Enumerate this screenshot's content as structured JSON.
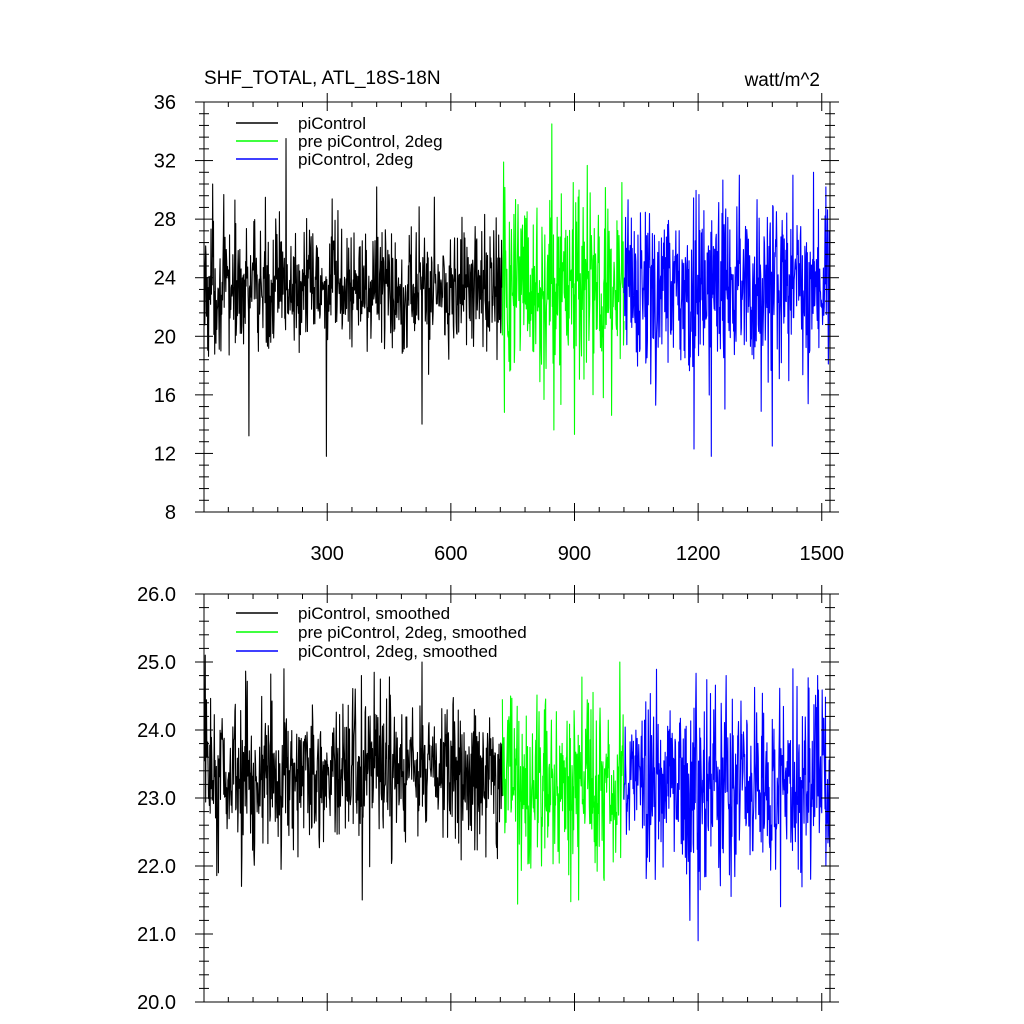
{
  "chart_data": [
    {
      "type": "line",
      "title": "SHF_TOTAL, ATL_18S-18N",
      "units": "watt/m^2",
      "xlim": [
        1,
        1520
      ],
      "ylim": [
        8,
        36
      ],
      "xticks": [
        300,
        600,
        900,
        1200,
        1500
      ],
      "xtick_labels": [
        "300",
        "600",
        "900",
        "1200",
        "1500"
      ],
      "yticks": [
        8,
        12,
        16,
        20,
        24,
        28,
        32,
        36
      ],
      "ytick_labels": [
        "8",
        "12",
        "16",
        "20",
        "24",
        "28",
        "32",
        "36"
      ],
      "legend_position": "top-left",
      "series": [
        {
          "name": "piControl",
          "color": "#000000",
          "x_range": [
            1,
            725
          ],
          "mean": 23.3,
          "spread": 2.2,
          "extremes": [
            [
              22,
              30.4
            ],
            [
              110,
              13.2
            ],
            [
              200,
              33.5
            ],
            [
              298,
              11.8
            ],
            [
              420,
              30.2
            ],
            [
              530,
              14.0
            ],
            [
              560,
              29.5
            ]
          ]
        },
        {
          "name": "pre piControl, 2deg",
          "color": "#00ff00",
          "x_range": [
            725,
            1020
          ],
          "mean": 23.2,
          "spread": 3.0,
          "extremes": [
            [
              728,
              31.9
            ],
            [
              730,
              14.8
            ],
            [
              845,
              34.5
            ],
            [
              850,
              13.6
            ],
            [
              900,
              13.3
            ],
            [
              990,
              14.6
            ],
            [
              1015,
              30.5
            ]
          ]
        },
        {
          "name": "piControl, 2deg",
          "color": "#0000ff",
          "x_range": [
            1020,
            1520
          ],
          "mean": 23.2,
          "spread": 3.0,
          "extremes": [
            [
              1190,
              12.3
            ],
            [
              1232,
              11.8
            ],
            [
              1380,
              12.5
            ],
            [
              1300,
              31.0
            ],
            [
              1430,
              31.0
            ],
            [
              1480,
              31.2
            ],
            [
              1510,
              30.2
            ]
          ]
        }
      ]
    },
    {
      "type": "line",
      "title": "",
      "xlim": [
        1,
        1520
      ],
      "ylim": [
        20,
        26
      ],
      "xticks": [
        300,
        600,
        900,
        1200,
        1500
      ],
      "yticks": [
        20,
        21,
        22,
        23,
        24,
        25,
        26
      ],
      "ytick_labels": [
        "20.0",
        "21.0",
        "22.0",
        "23.0",
        "24.0",
        "25.0",
        "26.0"
      ],
      "legend_position": "top-left",
      "series": [
        {
          "name": "piControl, smoothed",
          "color": "#000000",
          "x_range": [
            1,
            725
          ],
          "mean": 23.35,
          "spread": 0.55,
          "extremes": [
            [
              4,
              25.1
            ],
            [
              36,
              21.9
            ],
            [
              92,
              21.7
            ],
            [
              195,
              24.9
            ],
            [
              383,
              24.8
            ],
            [
              385,
              21.5
            ],
            [
              530,
              25.0
            ]
          ]
        },
        {
          "name": "pre piControl, 2deg, smoothed",
          "color": "#00ff00",
          "x_range": [
            725,
            1020
          ],
          "mean": 23.2,
          "spread": 0.6,
          "extremes": [
            [
              745,
              24.5
            ],
            [
              820,
              22.0
            ],
            [
              910,
              21.5
            ],
            [
              1000,
              22.2
            ],
            [
              1010,
              25.0
            ]
          ]
        },
        {
          "name": "piControl, 2deg, smoothed",
          "color": "#0000ff",
          "x_range": [
            1020,
            1520
          ],
          "mean": 23.2,
          "spread": 0.65,
          "extremes": [
            [
              1180,
              21.2
            ],
            [
              1200,
              20.9
            ],
            [
              1268,
              24.8
            ],
            [
              1400,
              21.4
            ],
            [
              1430,
              24.9
            ],
            [
              1490,
              24.8
            ],
            [
              1510,
              22.0
            ]
          ]
        }
      ]
    }
  ]
}
